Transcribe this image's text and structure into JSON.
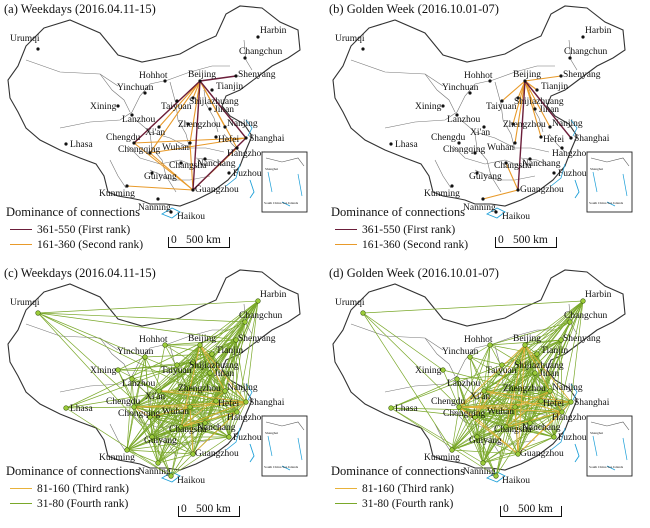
{
  "panels": [
    {
      "id": "a",
      "title": "(a) Weekdays (2016.04.11-15)",
      "legend_title": "Dominance of connections",
      "legend": [
        {
          "label": "361-550 (First rank)",
          "color": "#6b1e3a"
        },
        {
          "label": "161-360 (Second rank)",
          "color": "#e89a2a"
        }
      ],
      "inset_labels": [
        "Shanghai",
        "South China Sea Islands"
      ]
    },
    {
      "id": "b",
      "title": "(b) Golden Week (2016.10.01-07)",
      "legend_title": "Dominance of connections",
      "legend": [
        {
          "label": "361-550 (First rank)",
          "color": "#6b1e3a"
        },
        {
          "label": "161-360 (Second rank)",
          "color": "#e89a2a"
        }
      ],
      "inset_labels": [
        "Shanghai",
        "South China Sea Islands"
      ]
    },
    {
      "id": "c",
      "title": "(c) Weekdays (2016.04.11-15)",
      "legend_title": "Dominance of connections",
      "legend": [
        {
          "label": "81-160 (Third rank)",
          "color": "#e8b23a"
        },
        {
          "label": "31-80 (Fourth rank)",
          "color": "#7aa82a"
        }
      ],
      "inset_labels": [
        "Shanghai",
        "South China Sea Islands"
      ]
    },
    {
      "id": "d",
      "title": "(d) Golden Week (2016.10.01-07)",
      "legend_title": "Dominance of connections",
      "legend": [
        {
          "label": "81-160 (Third rank)",
          "color": "#e8b23a"
        },
        {
          "label": "31-80 (Fourth rank)",
          "color": "#7aa82a"
        }
      ],
      "inset_labels": [
        "Shanghai",
        "South China Sea Islands"
      ]
    }
  ],
  "scale": {
    "zero": "0",
    "value": "500 km"
  },
  "cities": [
    "Harbin",
    "Changchun",
    "Shenyang",
    "Urumqi",
    "Hohhot",
    "Beijing",
    "Tianjin",
    "Shijiazhuang",
    "Yinchuan",
    "Taiyuan",
    "Jinan",
    "Xining",
    "Lanzhou",
    "Zhengzhou",
    "Nanjing",
    "Xi'an",
    "Hefei",
    "Shanghai",
    "Lhasa",
    "Chengdu",
    "Wuhan",
    "Hangzhou",
    "Chongqing",
    "Changsha",
    "Nanchang",
    "Guiyang",
    "Fuzhou",
    "Kunming",
    "Guangzhou",
    "Nanning",
    "Haikou"
  ],
  "colors": {
    "boundary": "#555555",
    "water": "#1fa0d8",
    "node_c": "#7aa82a"
  }
}
